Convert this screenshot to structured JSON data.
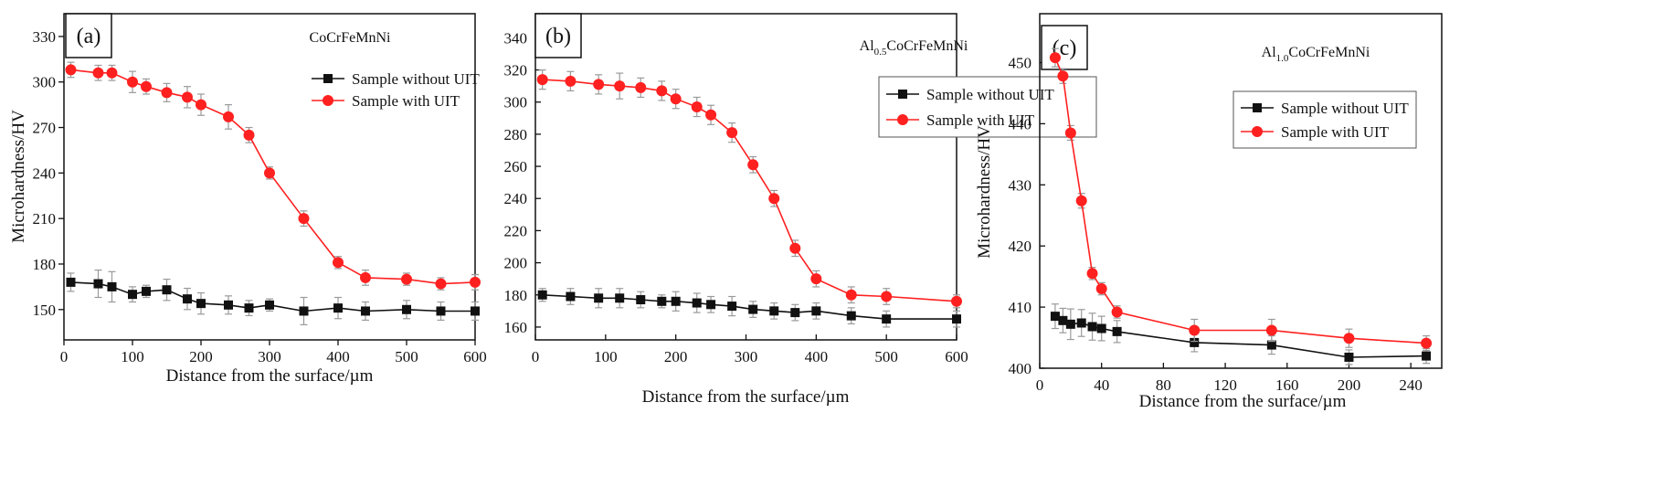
{
  "figure": {
    "colors": {
      "without": "#111111",
      "with": "#ff2020",
      "error": "#9a9a9a",
      "axis": "#111111"
    }
  },
  "chart_data": [
    {
      "type": "line",
      "panel_label": "(a)",
      "material": {
        "main": "CoCrFeMnNi",
        "sub": "",
        "tail": ""
      },
      "xlabel": "Distance from the surface/µm",
      "ylabel": "Microhardness/HV",
      "xlim": [
        0,
        600
      ],
      "ylim": [
        130,
        345
      ],
      "xticks": [
        0,
        100,
        200,
        300,
        400,
        500,
        600
      ],
      "xtick_labels": [
        "0",
        "100",
        "200",
        "300",
        "400",
        "500",
        "600"
      ],
      "yticks": [
        150,
        180,
        210,
        240,
        270,
        300,
        330
      ],
      "ytick_labels": [
        "150",
        "180",
        "210",
        "240",
        "270",
        "300",
        "330"
      ],
      "legend_position": "top-right",
      "series": [
        {
          "name": "Sample without UIT",
          "marker": "square",
          "color": "#111111",
          "x": [
            10,
            50,
            70,
            100,
            120,
            150,
            180,
            200,
            240,
            270,
            300,
            350,
            400,
            440,
            500,
            550,
            600
          ],
          "y": [
            168,
            167,
            165,
            160,
            162,
            163,
            157,
            154,
            153,
            151,
            153,
            149,
            151,
            149,
            150,
            149,
            149
          ],
          "err": [
            6,
            9,
            10,
            5,
            4,
            7,
            7,
            7,
            6,
            5,
            4,
            9,
            7,
            6,
            6,
            6,
            6
          ]
        },
        {
          "name": "Sample with UIT",
          "marker": "circle",
          "color": "#ff2020",
          "x": [
            10,
            50,
            70,
            100,
            120,
            150,
            180,
            200,
            240,
            270,
            300,
            350,
            400,
            440,
            500,
            550,
            600
          ],
          "y": [
            308,
            306,
            306,
            300,
            297,
            293,
            290,
            285,
            277,
            265,
            240,
            210,
            181,
            171,
            170,
            167,
            168
          ],
          "err": [
            5,
            5,
            5,
            7,
            5,
            6,
            7,
            7,
            8,
            5,
            4,
            5,
            4,
            5,
            4,
            4,
            5
          ]
        }
      ]
    },
    {
      "type": "line",
      "panel_label": "(b)",
      "material": {
        "main": "Al",
        "sub": "0.5",
        "tail": "CoCrFeMnNi"
      },
      "xlabel": "Distance from the surface/µm",
      "ylabel": "",
      "xlim": [
        0,
        600
      ],
      "ylim": [
        152,
        355
      ],
      "xticks": [
        0,
        100,
        200,
        300,
        400,
        500,
        600
      ],
      "xtick_labels": [
        "0",
        "100",
        "200",
        "300",
        "400",
        "500",
        "600"
      ],
      "yticks": [
        160,
        180,
        200,
        220,
        240,
        260,
        280,
        300,
        320,
        340
      ],
      "ytick_labels": [
        "160",
        "180",
        "200",
        "220",
        "240",
        "260",
        "280",
        "300",
        "320",
        "340"
      ],
      "legend_position": "top-right",
      "series": [
        {
          "name": "Sample without UIT",
          "marker": "square",
          "color": "#111111",
          "x": [
            10,
            50,
            90,
            120,
            150,
            180,
            200,
            230,
            250,
            280,
            310,
            340,
            370,
            400,
            450,
            500,
            600
          ],
          "y": [
            180,
            179,
            178,
            178,
            177,
            176,
            176,
            175,
            174,
            173,
            171,
            170,
            169,
            170,
            167,
            165,
            165
          ],
          "err": [
            4,
            5,
            6,
            6,
            5,
            4,
            6,
            6,
            5,
            6,
            5,
            5,
            5,
            5,
            5,
            5,
            5
          ]
        },
        {
          "name": "Sample with UIT",
          "marker": "circle",
          "color": "#ff2020",
          "x": [
            10,
            50,
            90,
            120,
            150,
            180,
            200,
            230,
            250,
            280,
            310,
            340,
            370,
            400,
            450,
            500,
            600
          ],
          "y": [
            314,
            313,
            311,
            310,
            309,
            307,
            302,
            297,
            292,
            281,
            261,
            240,
            209,
            190,
            180,
            179,
            176
          ],
          "err": [
            6,
            6,
            6,
            8,
            6,
            6,
            6,
            6,
            6,
            6,
            5,
            5,
            5,
            5,
            5,
            5,
            4
          ]
        }
      ]
    },
    {
      "type": "line",
      "panel_label": "(c)",
      "material": {
        "main": "Al",
        "sub": "1.0",
        "tail": "CoCrFeMnNi"
      },
      "xlabel": "Distance from the surface/µm",
      "ylabel": "Microhardness/HV",
      "xlim": [
        0,
        260
      ],
      "ylim": [
        400,
        458
      ],
      "xticks": [
        0,
        40,
        80,
        120,
        160,
        200,
        240
      ],
      "xtick_labels": [
        "0",
        "40",
        "80",
        "120",
        "160",
        "200",
        "240"
      ],
      "yticks": [
        400,
        410,
        420,
        430,
        440,
        450
      ],
      "ytick_labels": [
        "400",
        "410",
        "420",
        "430",
        "440",
        "450"
      ],
      "legend_position": "top-right",
      "series": [
        {
          "name": "Sample without UIT",
          "marker": "square",
          "color": "#111111",
          "x": [
            10,
            15,
            20,
            27,
            34,
            40,
            50,
            100,
            150,
            200,
            250
          ],
          "y": [
            408.5,
            407.8,
            407.2,
            407.4,
            406.8,
            406.5,
            406.0,
            404.2,
            403.8,
            401.8,
            402.0
          ],
          "err": [
            2.0,
            2.0,
            2.5,
            2.2,
            2.2,
            2.0,
            1.8,
            1.5,
            1.5,
            1.2,
            1.2
          ]
        },
        {
          "name": "Sample with UIT",
          "marker": "circle",
          "color": "#ff2020",
          "x": [
            10,
            15,
            20,
            27,
            34,
            40,
            50,
            100,
            150,
            200,
            250
          ],
          "y": [
            450.8,
            447.8,
            438.5,
            427.4,
            415.5,
            413.0,
            409.2,
            406.2,
            406.2,
            404.9,
            404.1
          ],
          "err": [
            1.5,
            1.2,
            1.2,
            1.2,
            1.0,
            1.0,
            1.0,
            1.8,
            1.8,
            1.5,
            1.2
          ]
        }
      ]
    }
  ]
}
